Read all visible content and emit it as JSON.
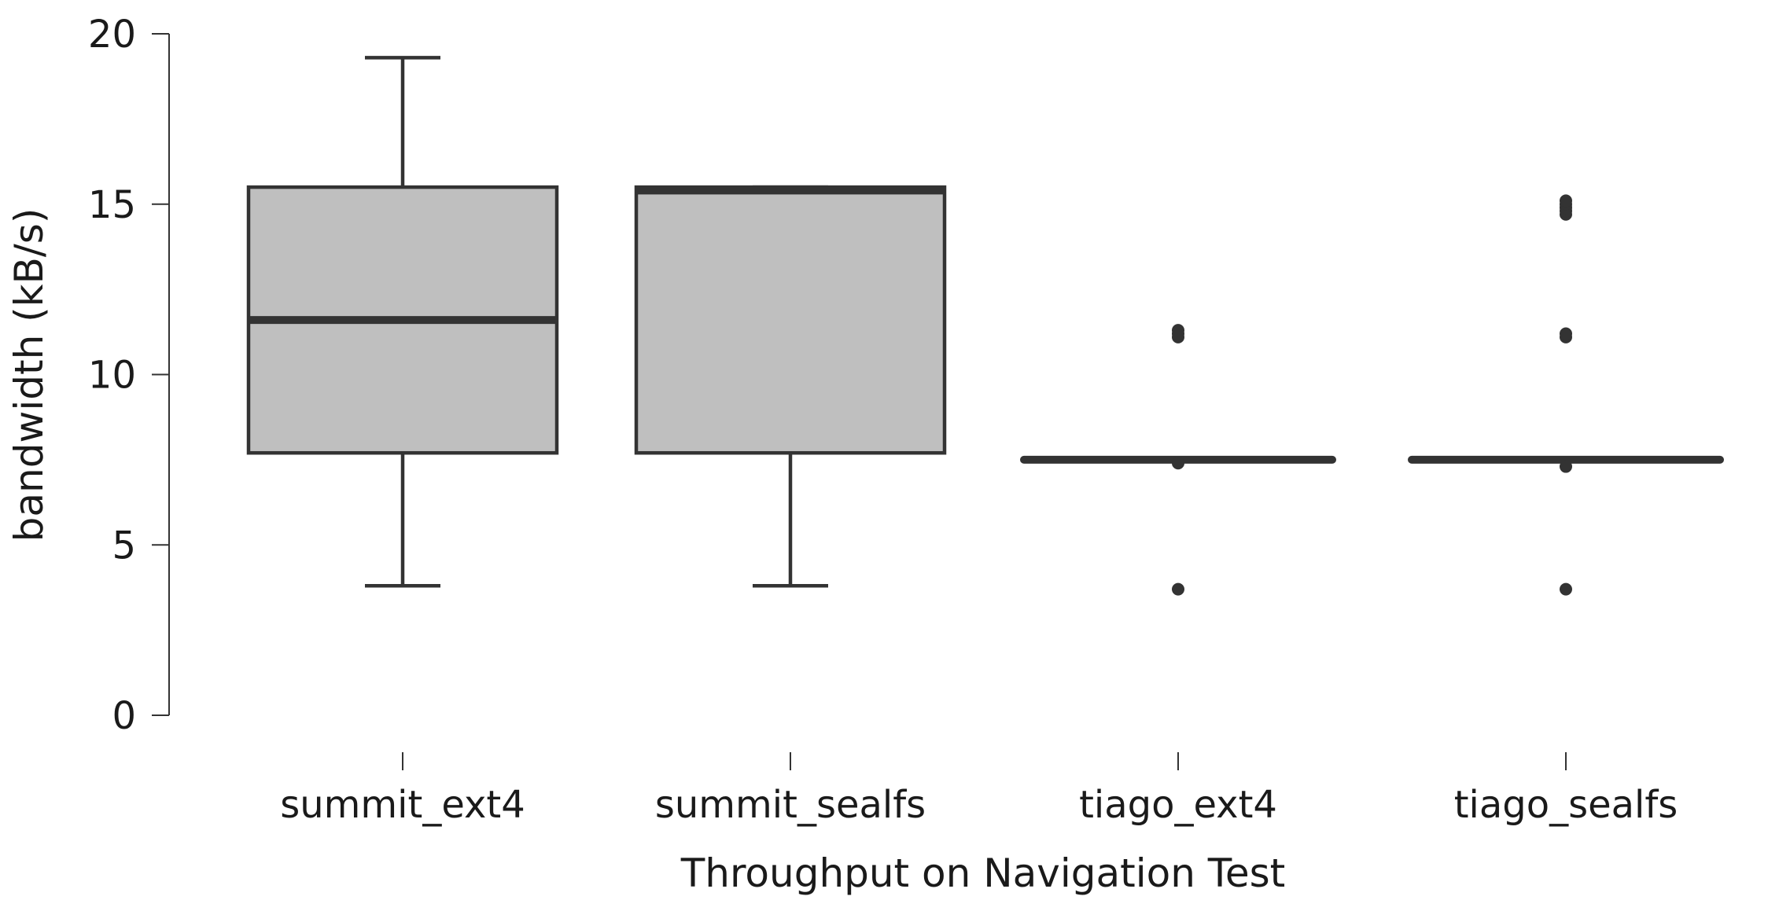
{
  "chart_data": {
    "type": "box",
    "title": "",
    "xlabel": "Throughput on Navigation Test",
    "ylabel": "bandwidth (kB/s)",
    "ylim": [
      0,
      20
    ],
    "yticks": [
      0,
      5,
      10,
      15,
      20
    ],
    "ytick_labels": [
      "0",
      "5",
      "10",
      "15",
      "20"
    ],
    "grid": false,
    "legend": "none",
    "colors": {
      "box_fill": "#bfbfbf",
      "stroke": "#333333",
      "axis": "#333333"
    },
    "categories": [
      "summit_ext4",
      "summit_sealfs",
      "tiago_ext4",
      "tiago_sealfs"
    ],
    "boxes": [
      {
        "category": "summit_ext4",
        "whisker_low": 3.8,
        "q1": 7.7,
        "median": 11.6,
        "q3": 15.5,
        "whisker_high": 19.3,
        "outliers": []
      },
      {
        "category": "summit_sealfs",
        "whisker_low": 3.8,
        "q1": 7.7,
        "median": 15.4,
        "q3": 15.5,
        "whisker_high": 15.5,
        "outliers": []
      },
      {
        "category": "tiago_ext4",
        "whisker_low": 7.5,
        "q1": 7.5,
        "median": 7.5,
        "q3": 7.5,
        "whisker_high": 7.5,
        "outliers": [
          3.7,
          7.4,
          11.1,
          11.2,
          11.3
        ]
      },
      {
        "category": "tiago_sealfs",
        "whisker_low": 7.5,
        "q1": 7.5,
        "median": 7.5,
        "q3": 7.5,
        "whisker_high": 7.5,
        "outliers": [
          3.7,
          7.3,
          11.1,
          11.2,
          14.7,
          14.8,
          14.9,
          15.0,
          15.1
        ]
      }
    ]
  }
}
